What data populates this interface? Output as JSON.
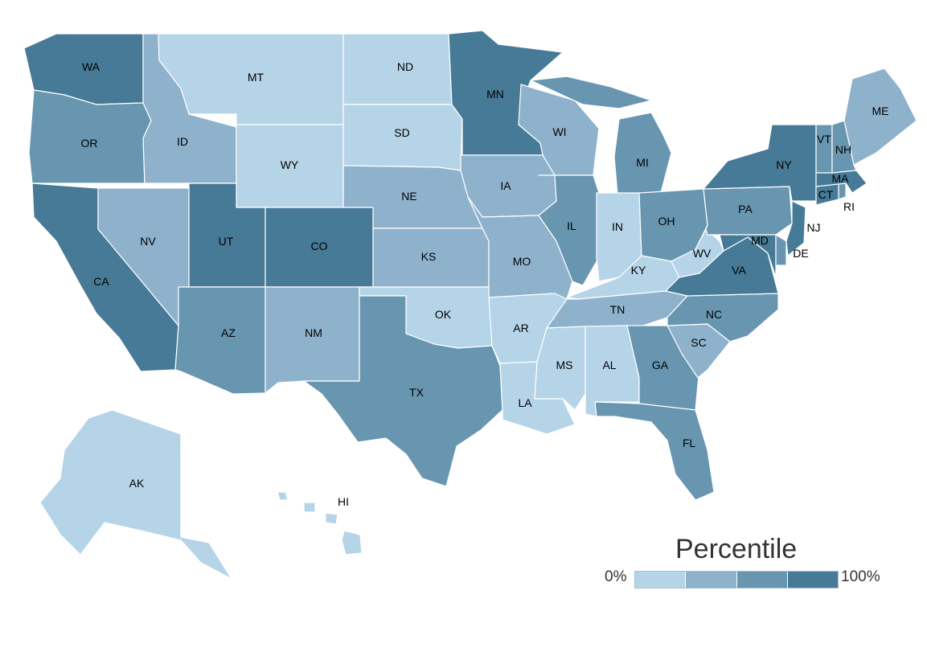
{
  "legend": {
    "title": "Percentile",
    "min_label": "0%",
    "max_label": "100%",
    "bins": [
      "#b6d4e8",
      "#8fb2cc",
      "#6896b1",
      "#477a96"
    ]
  },
  "states": [
    {
      "abbr": "WA",
      "bin": 3
    },
    {
      "abbr": "OR",
      "bin": 2
    },
    {
      "abbr": "CA",
      "bin": 3
    },
    {
      "abbr": "ID",
      "bin": 1
    },
    {
      "abbr": "NV",
      "bin": 1
    },
    {
      "abbr": "MT",
      "bin": 0
    },
    {
      "abbr": "WY",
      "bin": 0
    },
    {
      "abbr": "UT",
      "bin": 3
    },
    {
      "abbr": "AZ",
      "bin": 2
    },
    {
      "abbr": "CO",
      "bin": 3
    },
    {
      "abbr": "NM",
      "bin": 1
    },
    {
      "abbr": "ND",
      "bin": 0
    },
    {
      "abbr": "SD",
      "bin": 0
    },
    {
      "abbr": "NE",
      "bin": 1
    },
    {
      "abbr": "KS",
      "bin": 1
    },
    {
      "abbr": "OK",
      "bin": 0
    },
    {
      "abbr": "TX",
      "bin": 2
    },
    {
      "abbr": "MN",
      "bin": 3
    },
    {
      "abbr": "IA",
      "bin": 1
    },
    {
      "abbr": "MO",
      "bin": 1
    },
    {
      "abbr": "AR",
      "bin": 0
    },
    {
      "abbr": "LA",
      "bin": 0
    },
    {
      "abbr": "WI",
      "bin": 1
    },
    {
      "abbr": "IL",
      "bin": 2
    },
    {
      "abbr": "MI",
      "bin": 2
    },
    {
      "abbr": "IN",
      "bin": 0
    },
    {
      "abbr": "OH",
      "bin": 2
    },
    {
      "abbr": "KY",
      "bin": 0
    },
    {
      "abbr": "TN",
      "bin": 1
    },
    {
      "abbr": "MS",
      "bin": 0
    },
    {
      "abbr": "AL",
      "bin": 0
    },
    {
      "abbr": "GA",
      "bin": 2
    },
    {
      "abbr": "FL",
      "bin": 2
    },
    {
      "abbr": "SC",
      "bin": 1
    },
    {
      "abbr": "NC",
      "bin": 2
    },
    {
      "abbr": "VA",
      "bin": 3
    },
    {
      "abbr": "WV",
      "bin": 0
    },
    {
      "abbr": "PA",
      "bin": 2
    },
    {
      "abbr": "NY",
      "bin": 3
    },
    {
      "abbr": "VT",
      "bin": 2
    },
    {
      "abbr": "NH",
      "bin": 2
    },
    {
      "abbr": "ME",
      "bin": 1
    },
    {
      "abbr": "MA",
      "bin": 3
    },
    {
      "abbr": "RI",
      "bin": 2
    },
    {
      "abbr": "CT",
      "bin": 3
    },
    {
      "abbr": "NJ",
      "bin": 3
    },
    {
      "abbr": "DE",
      "bin": 2
    },
    {
      "abbr": "MD",
      "bin": 3
    },
    {
      "abbr": "AK",
      "bin": 0
    },
    {
      "abbr": "HI",
      "bin": 0
    }
  ]
}
